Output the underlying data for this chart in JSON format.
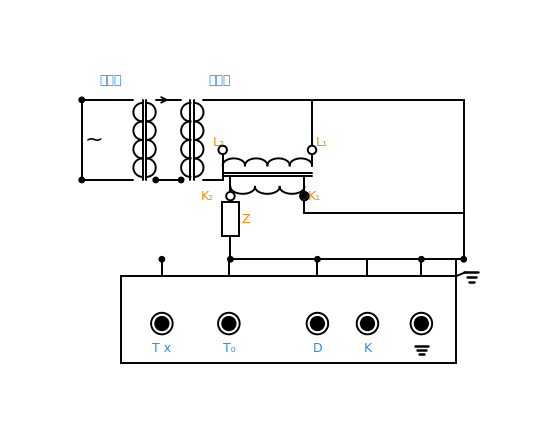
{
  "fig_width": 5.57,
  "fig_height": 4.28,
  "dpi": 100,
  "lc": "#000000",
  "cn_color": "#1E90FF",
  "val_color": "#FF8C00",
  "label_diaoya": "调压器",
  "label_shengliuq": "升流器",
  "label_L2": "L₂",
  "label_L1": "L₁",
  "label_K2": "K₂",
  "label_K1": "K₁",
  "label_Z": "Z",
  "label_Tx": "T x",
  "label_T0": "T₀",
  "label_D": "D",
  "label_K": "K"
}
